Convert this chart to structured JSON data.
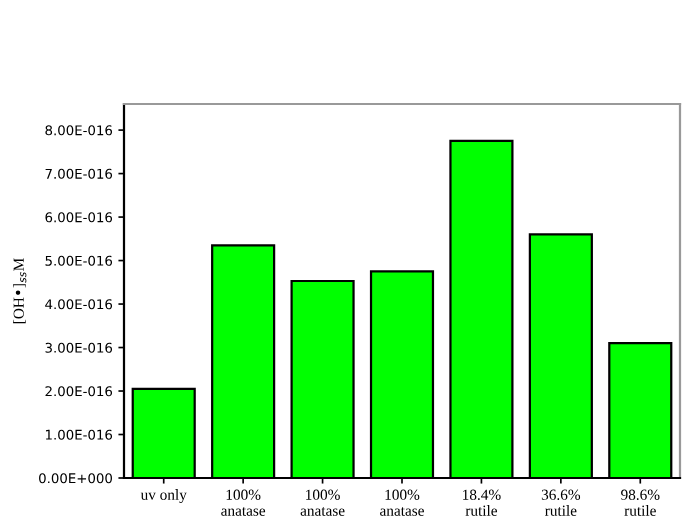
{
  "chart_data": {
    "type": "bar",
    "ylabel": "[OH•]$_{ss}$M",
    "categories": [
      "uv only",
      "100%\nanatase",
      "100%\nanatase",
      "100%\nanatase",
      "18.4%\nrutile",
      "36.6%\nrutile",
      "98.6%\nrutile"
    ],
    "values": [
      2.05e-16,
      5.35e-16,
      4.53e-16,
      4.75e-16,
      7.75e-16,
      5.6e-16,
      3.1e-16
    ],
    "color": "#00ff00",
    "ylim": [
      0,
      8.6e-16
    ],
    "yticks": [
      {
        "value": 0,
        "label": "0.00E+000"
      },
      {
        "value": 1e-16,
        "label": "1.00E-016"
      },
      {
        "value": 2e-16,
        "label": "2.00E-016"
      },
      {
        "value": 3e-16,
        "label": "3.00E-016"
      },
      {
        "value": 4e-16,
        "label": "4.00E-016"
      },
      {
        "value": 5e-16,
        "label": "5.00E-016"
      },
      {
        "value": 6e-16,
        "label": "6.00E-016"
      },
      {
        "value": 7e-16,
        "label": "7.00E-016"
      },
      {
        "value": 8e-16,
        "label": "8.00E-016"
      }
    ],
    "grid": false
  }
}
